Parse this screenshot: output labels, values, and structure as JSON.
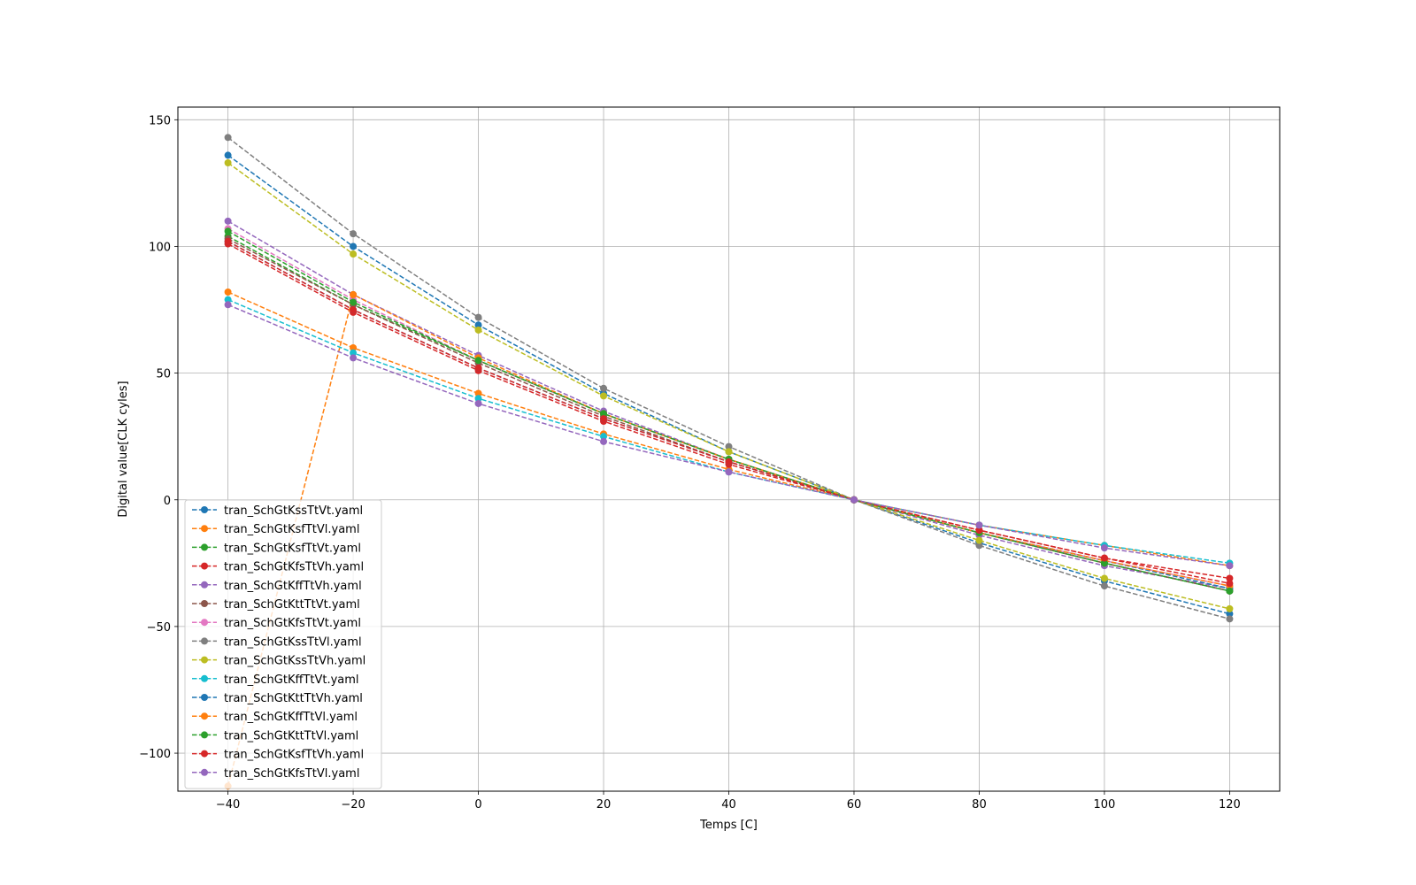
{
  "chart_data": {
    "type": "line",
    "title": "",
    "xlabel": "Temps [C]",
    "ylabel": "Digital value[CLK cyles]",
    "x": [
      -40,
      -20,
      0,
      20,
      40,
      60,
      80,
      100,
      120
    ],
    "xlim": [
      -48,
      128
    ],
    "ylim": [
      -115,
      155
    ],
    "xticks": [
      -40,
      -20,
      0,
      20,
      40,
      60,
      80,
      100,
      120
    ],
    "yticks": [
      -100,
      -50,
      0,
      50,
      100,
      150
    ],
    "xtick_labels": [
      "−40",
      "−20",
      "0",
      "20",
      "40",
      "60",
      "80",
      "100",
      "120"
    ],
    "ytick_labels": [
      "−100",
      "−50",
      "0",
      "50",
      "100",
      "150"
    ],
    "grid": true,
    "legend_position": "lower-left",
    "line_style": "dashed",
    "marker": "circle",
    "series": [
      {
        "name": "tran_SchGtKssTtVt.yaml",
        "color": "#1f77b4",
        "values": [
          136,
          100,
          69,
          42,
          19,
          0,
          -17,
          -32,
          -45
        ]
      },
      {
        "name": "tran_SchGtKsfTtVl.yaml",
        "color": "#ff7f0e",
        "values": [
          82,
          60,
          42,
          26,
          12,
          0,
          -10,
          -18,
          -26
        ]
      },
      {
        "name": "tran_SchGtKsfTtVt.yaml",
        "color": "#2ca02c",
        "values": [
          104,
          77,
          55,
          34,
          16,
          0,
          -13,
          -25,
          -36
        ]
      },
      {
        "name": "tran_SchGtKfsTtVh.yaml",
        "color": "#d62728",
        "values": [
          101,
          74,
          51,
          31,
          14,
          0,
          -12,
          -23,
          -31
        ]
      },
      {
        "name": "tran_SchGtKffTtVh.yaml",
        "color": "#9467bd",
        "values": [
          110,
          81,
          57,
          35,
          16,
          0,
          -14,
          -26,
          -35
        ]
      },
      {
        "name": "tran_SchGtKttTtVt.yaml",
        "color": "#8c564b",
        "values": [
          103,
          77,
          54,
          33,
          15,
          0,
          -13,
          -25,
          -36
        ]
      },
      {
        "name": "tran_SchGtKfsTtVt.yaml",
        "color": "#e377c2",
        "values": [
          107,
          79,
          55,
          34,
          16,
          0,
          -13,
          -24,
          -34
        ]
      },
      {
        "name": "tran_SchGtKssTtVl.yaml",
        "color": "#7f7f7f",
        "values": [
          143,
          105,
          72,
          44,
          21,
          0,
          -18,
          -34,
          -47
        ]
      },
      {
        "name": "tran_SchGtKssTtVh.yaml",
        "color": "#bcbd22",
        "values": [
          133,
          97,
          67,
          41,
          19,
          0,
          -16,
          -31,
          -43
        ]
      },
      {
        "name": "tran_SchGtKffTtVt.yaml",
        "color": "#17becf",
        "values": [
          79,
          58,
          40,
          25,
          11,
          0,
          -10,
          -18,
          -25
        ]
      },
      {
        "name": "tran_SchGtKttTtVh.yaml",
        "color": "#1f77b4",
        "values": [
          102,
          75,
          52,
          32,
          15,
          0,
          -13,
          -24,
          -35
        ]
      },
      {
        "name": "tran_SchGtKffTtVl.yaml",
        "color": "#ff7f0e",
        "values": [
          -113,
          81,
          56,
          34,
          16,
          0,
          -13,
          -24,
          -34
        ]
      },
      {
        "name": "tran_SchGtKttTtVl.yaml",
        "color": "#2ca02c",
        "values": [
          106,
          78,
          55,
          34,
          16,
          0,
          -13,
          -25,
          -36
        ]
      },
      {
        "name": "tran_SchGtKsfTtVh.yaml",
        "color": "#d62728",
        "values": [
          102,
          75,
          52,
          32,
          15,
          0,
          -12,
          -23,
          -33
        ]
      },
      {
        "name": "tran_SchGtKfsTtVl.yaml",
        "color": "#9467bd",
        "values": [
          77,
          56,
          38,
          23,
          11,
          0,
          -10,
          -19,
          -26
        ]
      }
    ]
  }
}
